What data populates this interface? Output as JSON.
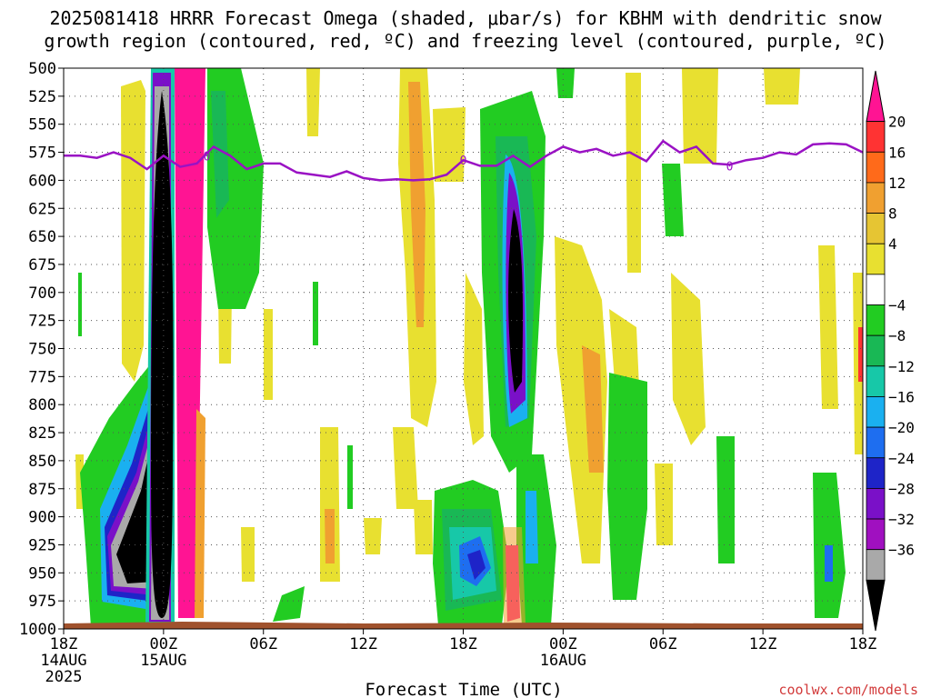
{
  "title": {
    "line1": "2025081418 HRRR Forecast Omega (shaded, μbar/s) for KBHM with dendritic snow",
    "line2": "growth region (contoured, red, ºC) and freezing level (contoured, purple, ºC)"
  },
  "x_axis_label": "Forecast Time (UTC)",
  "credit": "coolwx.com/models",
  "chart_data": {
    "type": "heatmap",
    "title": "2025081418 HRRR Forecast Omega (shaded, μbar/s) for KBHM with dendritic snow growth region (contoured, red, ºC) and freezing level (contoured, purple, ºC)",
    "xlabel": "Forecast Time (UTC)",
    "ylabel": "",
    "x_unit": "hours since 2025-08-14 18Z",
    "x_range": [
      0,
      48
    ],
    "x_ticks": [
      {
        "value": 0,
        "line1": "18Z",
        "line2": "14AUG",
        "line3": "2025"
      },
      {
        "value": 6,
        "line1": "00Z",
        "line2": "15AUG",
        "line3": ""
      },
      {
        "value": 12,
        "line1": "06Z",
        "line2": "",
        "line3": ""
      },
      {
        "value": 18,
        "line1": "12Z",
        "line2": "",
        "line3": ""
      },
      {
        "value": 24,
        "line1": "18Z",
        "line2": "",
        "line3": ""
      },
      {
        "value": 30,
        "line1": "00Z",
        "line2": "16AUG",
        "line3": ""
      },
      {
        "value": 36,
        "line1": "06Z",
        "line2": "",
        "line3": ""
      },
      {
        "value": 42,
        "line1": "12Z",
        "line2": "",
        "line3": ""
      },
      {
        "value": 48,
        "line1": "18Z",
        "line2": "",
        "line3": ""
      }
    ],
    "y_unit": "hPa",
    "y_range": [
      1000,
      500
    ],
    "y_ticks": [
      500,
      525,
      550,
      575,
      600,
      625,
      650,
      675,
      700,
      725,
      750,
      775,
      800,
      825,
      850,
      875,
      900,
      925,
      950,
      975,
      1000
    ],
    "grid": true,
    "colorbar": {
      "levels": [
        {
          "label": "20",
          "value": 20
        },
        {
          "label": "16",
          "value": 16
        },
        {
          "label": "12",
          "value": 12
        },
        {
          "label": "8",
          "value": 8
        },
        {
          "label": "4",
          "value": 4
        },
        {
          "label": "−4",
          "value": -4
        },
        {
          "label": "−8",
          "value": -8
        },
        {
          "label": "−12",
          "value": -12
        },
        {
          "label": "−16",
          "value": -16
        },
        {
          "label": "−20",
          "value": -20
        },
        {
          "label": "−24",
          "value": -24
        },
        {
          "label": "−28",
          "value": -28
        },
        {
          "label": "−32",
          "value": -32
        },
        {
          "label": "−36",
          "value": -36
        }
      ],
      "colors": [
        "#ff1493",
        "#ff3333",
        "#ff6a1a",
        "#f0a030",
        "#e6c533",
        "#e8e030",
        "#ffffff",
        "#22cc22",
        "#19b855",
        "#17c8a8",
        "#1ab0f0",
        "#1e6ef0",
        "#1e24c8",
        "#7a10c8",
        "#a010c0",
        "#a9a9a9",
        "#000000"
      ]
    },
    "freezing_level": {
      "color": "#9a12c4",
      "label": "0",
      "points": [
        [
          0,
          578
        ],
        [
          1,
          578
        ],
        [
          2,
          580
        ],
        [
          3,
          575
        ],
        [
          4,
          580
        ],
        [
          5,
          590
        ],
        [
          6,
          578
        ],
        [
          7,
          588
        ],
        [
          8,
          585
        ],
        [
          9,
          570
        ],
        [
          10,
          578
        ],
        [
          11,
          590
        ],
        [
          12,
          585
        ],
        [
          13,
          585
        ],
        [
          14,
          593
        ],
        [
          15,
          595
        ],
        [
          16,
          597
        ],
        [
          17,
          592
        ],
        [
          18,
          598
        ],
        [
          19,
          600
        ],
        [
          20,
          599
        ],
        [
          21,
          600
        ],
        [
          22,
          599
        ],
        [
          23,
          595
        ],
        [
          24,
          582
        ],
        [
          25,
          587
        ],
        [
          26,
          587
        ],
        [
          27,
          578
        ],
        [
          28,
          588
        ],
        [
          29,
          578
        ],
        [
          30,
          570
        ],
        [
          31,
          575
        ],
        [
          32,
          572
        ],
        [
          33,
          578
        ],
        [
          34,
          575
        ],
        [
          35,
          583
        ],
        [
          36,
          565
        ],
        [
          37,
          575
        ],
        [
          38,
          570
        ],
        [
          39,
          585
        ],
        [
          40,
          586
        ],
        [
          41,
          582
        ],
        [
          42,
          580
        ],
        [
          43,
          575
        ],
        [
          44,
          577
        ],
        [
          45,
          568
        ],
        [
          46,
          567
        ],
        [
          47,
          568
        ],
        [
          48,
          575
        ]
      ],
      "label_positions": [
        [
          8.6,
          578
        ],
        [
          24.0,
          582
        ],
        [
          40.0,
          587
        ]
      ]
    },
    "omega_features": [
      {
        "x": [
          5.5,
          6.4
        ],
        "p": [
          540,
          980
        ],
        "value": -36,
        "note": "strong upward motion core"
      },
      {
        "x": [
          6.7,
          7.8
        ],
        "p": [
          500,
          985
        ],
        "value": 20
      },
      {
        "x": [
          26.5,
          27.5
        ],
        "p": [
          590,
          760
        ],
        "value": -36
      },
      {
        "x": [
          2.0,
          6.5
        ],
        "p": [
          770,
          990
        ],
        "value": -36
      },
      {
        "x": [
          24.0,
          27.5
        ],
        "p": [
          840,
          985
        ],
        "value": -20
      },
      {
        "x": [
          26.7,
          27.4
        ],
        "p": [
          905,
          985
        ],
        "value": 20
      }
    ]
  }
}
